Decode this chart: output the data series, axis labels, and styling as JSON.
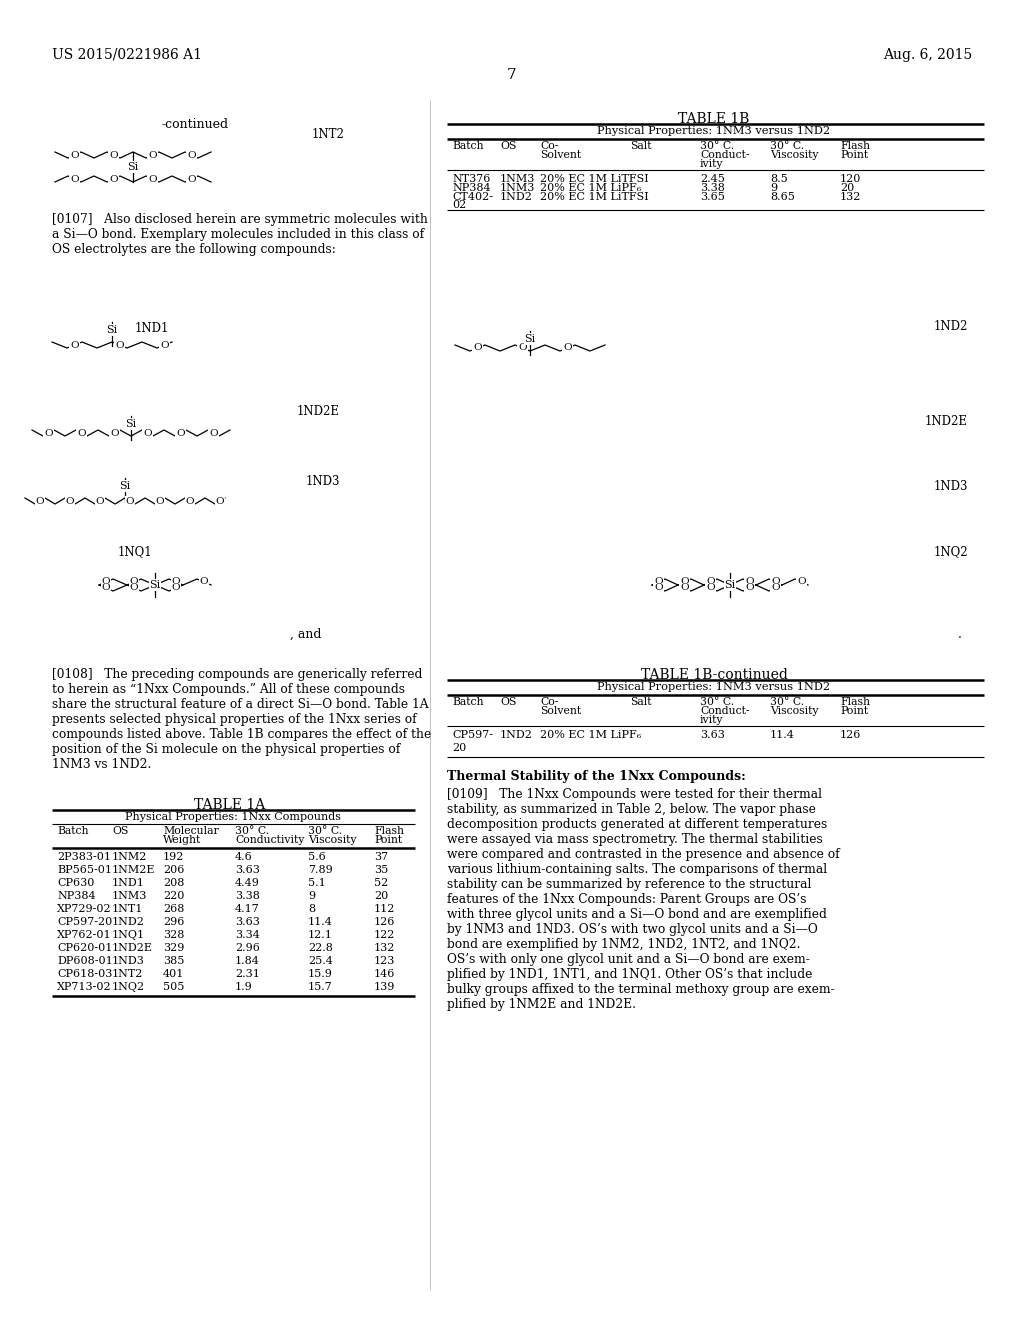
{
  "bg": "#ffffff",
  "header_left": "US 2015/0221986 A1",
  "header_right": "Aug. 6, 2015",
  "page_num": "7",
  "continued": "-continued",
  "lbl_1NT2": "1NT2",
  "lbl_1ND1": "1ND1",
  "lbl_1ND2": "1ND2",
  "lbl_1ND2E": "1ND2E",
  "lbl_1ND3": "1ND3",
  "lbl_1NQ1": "1NQ1",
  "lbl_1NQ2": "1NQ2",
  "and_txt": ", and",
  "period": ".",
  "para0107": "[0107]   Also disclosed herein are symmetric molecules with\na Si—O bond. Exemplary molecules included in this class of\nOS electrolytes are the following compounds:",
  "para0108": "[0108]   The preceding compounds are generically referred\nto herein as “1Nxx Compounds.” All of these compounds\nshare the structural feature of a direct Si—O bond. Table 1A\npresents selected physical properties of the 1Nxx series of\ncompounds listed above. Table 1B compares the effect of the\nposition of the Si molecule on the physical properties of\n1NM3 vs 1ND2.",
  "t1b_title": "TABLE 1B",
  "t1b_sub": "Physical Properties: 1NM3 versus 1ND2",
  "t1b_h1": "Batch",
  "t1b_h2": "OS",
  "t1b_h3a": "Co-",
  "t1b_h3b": "Solvent",
  "t1b_h4": "Salt",
  "t1b_h5a": "30° C.",
  "t1b_h5b": "Conduct-",
  "t1b_h5c": "ivity",
  "t1b_h6a": "30° C.",
  "t1b_h6b": "Viscosity",
  "t1b_h7a": "Flash",
  "t1b_h7b": "Point",
  "t1b_rows": [
    [
      "NT376",
      "1NM3",
      "20% EC 1M LiTFSI",
      "2.45",
      "8.5",
      "120"
    ],
    [
      "NP384",
      "1NM3",
      "20% EC 1M LiPF₆",
      "3.38",
      "9",
      "20"
    ],
    [
      "CT402-",
      "1ND2",
      "20% EC 1M LiTFSI",
      "3.65",
      "8.65",
      "132"
    ],
    [
      "02",
      "",
      "",
      "",
      "",
      ""
    ]
  ],
  "t1bc_title": "TABLE 1B-continued",
  "t1bc_sub": "Physical Properties: 1NM3 versus 1ND2",
  "t1bc_rows": [
    [
      "CP597-",
      "1ND2",
      "20% EC 1M LiPF₆",
      "3.63",
      "11.4",
      "126"
    ],
    [
      "20",
      "",
      "",
      "",
      "",
      ""
    ]
  ],
  "t1a_title": "TABLE 1A",
  "t1a_sub": "Physical Properties: 1Nxx Compounds",
  "t1a_h1": "Batch",
  "t1a_h2": "OS",
  "t1a_h3a": "Molecular",
  "t1a_h3b": "Weight",
  "t1a_h4a": "30° C.",
  "t1a_h4b": "Conductivity",
  "t1a_h5a": "30° C.",
  "t1a_h5b": "Viscosity",
  "t1a_h6a": "Flash",
  "t1a_h6b": "Point",
  "t1a_rows": [
    [
      "2P383-01",
      "1NM2",
      "192",
      "4.6",
      "5.6",
      "37"
    ],
    [
      "BP565-01",
      "1NM2E",
      "206",
      "3.63",
      "7.89",
      "35"
    ],
    [
      "CP630",
      "1ND1",
      "208",
      "4.49",
      "5.1",
      "52"
    ],
    [
      "NP384",
      "1NM3",
      "220",
      "3.38",
      "9",
      "20"
    ],
    [
      "XP729-02",
      "1NT1",
      "268",
      "4.17",
      "8",
      "112"
    ],
    [
      "CP597-20",
      "1ND2",
      "296",
      "3.63",
      "11.4",
      "126"
    ],
    [
      "XP762-01",
      "1NQ1",
      "328",
      "3.34",
      "12.1",
      "122"
    ],
    [
      "CP620-01",
      "1ND2E",
      "329",
      "2.96",
      "22.8",
      "132"
    ],
    [
      "DP608-01",
      "1ND3",
      "385",
      "1.84",
      "25.4",
      "123"
    ],
    [
      "CP618-03",
      "1NT2",
      "401",
      "2.31",
      "15.9",
      "146"
    ],
    [
      "XP713-02",
      "1NQ2",
      "505",
      "1.9",
      "15.7",
      "139"
    ]
  ],
  "therm_title": "Thermal Stability of the 1Nxx Compounds:",
  "para0109": "[0109]   The 1Nxx Compounds were tested for their thermal\nstability, as summarized in Table 2, below. The vapor phase\ndecomposition products generated at different temperatures\nwere assayed via mass spectrometry. The thermal stabilities\nwere compared and contrasted in the presence and absence of\nvarious lithium-containing salts. The comparisons of thermal\nstability can be summarized by reference to the structural\nfeatures of the 1Nxx Compounds: Parent Groups are OS’s\nwith three glycol units and a Si—O bond and are exemplified\nby 1NM3 and 1ND3. OS’s with two glycol units and a Si—O\nbond are exemplified by 1NM2, 1ND2, 1NT2, and 1NQ2.\nOS’s with only one glycol unit and a Si—O bond are exem-\nplified by 1ND1, 1NT1, and 1NQ1. Other OS’s that include\nbulky groups affixed to the terminal methoxy group are exem-\nplified by 1NM2E and 1ND2E."
}
